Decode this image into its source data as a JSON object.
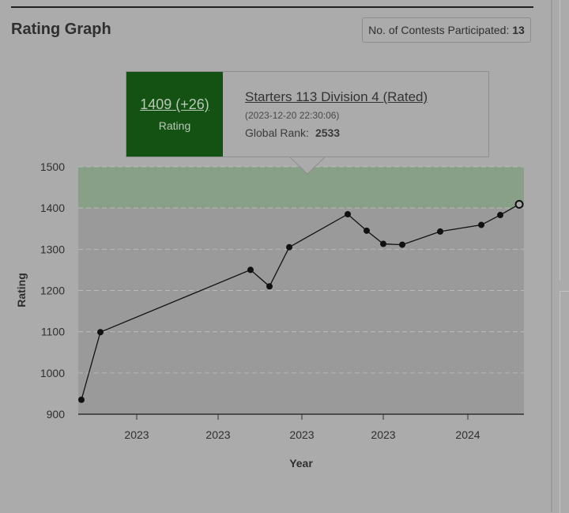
{
  "page": {
    "title": "Rating Graph",
    "contests_label": "No. of Contests Participated:",
    "contests_count": "13"
  },
  "tooltip": {
    "rating_text": "1409 (+26)",
    "rating_label": "Rating",
    "contest_name": "Starters 113 Division 4 (Rated)",
    "datetime": "(2023-12-20 22:30:06)",
    "rank_label": "Global Rank:",
    "rank_value": "2533",
    "colors": {
      "badge": "#145214"
    }
  },
  "chart_data": {
    "type": "line",
    "xlabel": "Year",
    "ylabel": "Rating",
    "ylim": [
      900,
      1500
    ],
    "yticks": [
      900,
      1000,
      1100,
      1200,
      1300,
      1400,
      1500
    ],
    "xtick_labels": [
      "2023",
      "2023",
      "2023",
      "2023",
      "2024"
    ],
    "grid": "horizontal-dashed",
    "bands": [
      {
        "from": 1400,
        "to": 1500,
        "color": "#88a088"
      },
      {
        "from": 900,
        "to": 1400,
        "color": "#9a9a9a"
      }
    ],
    "series": [
      {
        "values": [
          935,
          1099,
          1250,
          1210,
          1305,
          1385,
          1345,
          1313,
          1311,
          1343,
          1359,
          1383,
          1409
        ],
        "highlight_last": true
      }
    ]
  }
}
